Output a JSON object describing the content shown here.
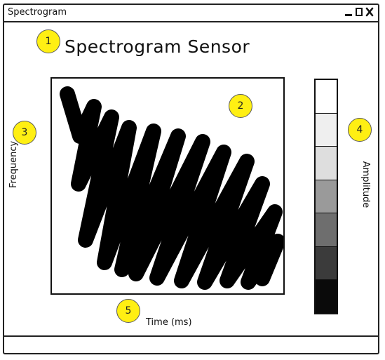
{
  "window": {
    "title": "Spectrogram"
  },
  "heading": "Spectrogram Sensor",
  "axes": {
    "y_label": "Frequency",
    "x_label": "Time (ms)",
    "colorbar_label": "Amplitude"
  },
  "colorbar": {
    "colors": [
      "#ffffff",
      "#efefef",
      "#dedede",
      "#9a9a9a",
      "#6e6e6e",
      "#3b3b3b",
      "#0a0a0a"
    ]
  },
  "markers": [
    "1",
    "2",
    "3",
    "4",
    "5"
  ],
  "icons": {
    "minimize": "minimize-icon",
    "maximize": "maximize-icon",
    "close": "close-icon"
  }
}
